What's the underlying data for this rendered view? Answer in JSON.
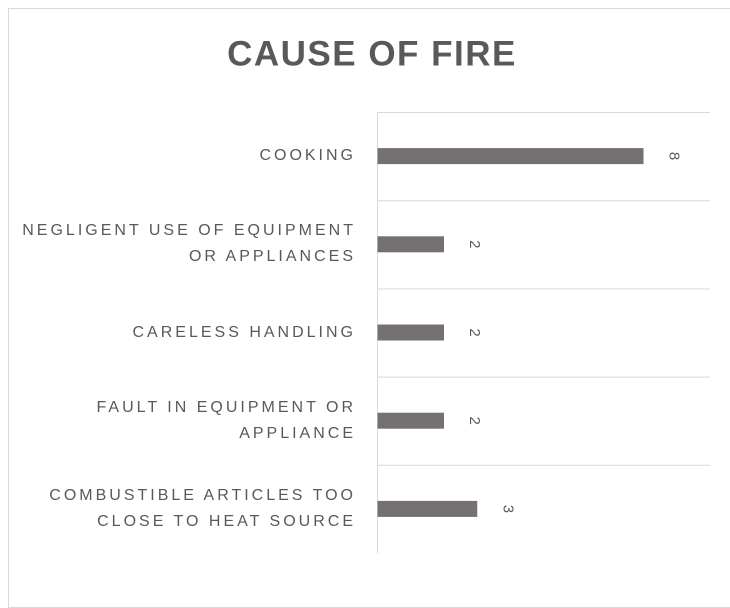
{
  "chart_data": {
    "type": "bar",
    "orientation": "horizontal",
    "title": "CAUSE OF FIRE",
    "categories": [
      "COOKING",
      "NEGLIGENT USE OF EQUIPMENT OR APPLIANCES",
      "CARELESS HANDLING",
      "FAULT IN EQUIPMENT OR APPLIANCE",
      "COMBUSTIBLE ARTICLES TOO CLOSE TO HEAT SOURCE"
    ],
    "values": [
      8,
      2,
      2,
      2,
      3
    ],
    "color": "#767171",
    "xlim": [
      0,
      10
    ]
  }
}
